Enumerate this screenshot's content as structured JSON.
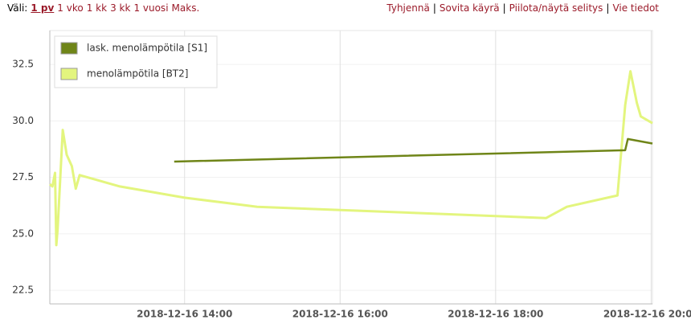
{
  "toolbar": {
    "range_label": "Väli:",
    "ranges": [
      "1 pv",
      "1 vko",
      "1 kk",
      "3 kk",
      "1 vuosi",
      "Maks."
    ],
    "actions": [
      "Tyhjennä",
      "Sovita käyrä",
      "Piilota/näytä selitys",
      "Vie tiedot"
    ],
    "separator": "|"
  },
  "chart_data": {
    "type": "line",
    "xlim": [
      "2018-12-16 12:16",
      "2018-12-16 20:01"
    ],
    "xticks": [
      "2018-12-16 14:00",
      "2018-12-16 16:00",
      "2018-12-16 18:00",
      "2018-12-16 20:00"
    ],
    "ylim": [
      21.9,
      34.0
    ],
    "yticks": [
      22.5,
      {
        "value": 25,
        "label": "25.0"
      },
      27.5,
      {
        "value": 30,
        "label": "30.0"
      },
      32.5
    ],
    "grid": true,
    "legend": "upper left",
    "series": [
      {
        "name": "lask. menolämpötila [S1]",
        "color": "#6f8518",
        "x": [
          "2018-12-16 13:52",
          "2018-12-16 19:40",
          "2018-12-16 19:42",
          "2018-12-16 20:01"
        ],
        "values": [
          28.2,
          28.7,
          29.2,
          29.0
        ]
      },
      {
        "name": "menolämpötila [BT2]",
        "color": "#e3f57e",
        "x": [
          "2018-12-16 12:16",
          "2018-12-16 12:18",
          "2018-12-16 12:20",
          "2018-12-16 12:21",
          "2018-12-16 12:22",
          "2018-12-16 12:26",
          "2018-12-16 12:29",
          "2018-12-16 12:33",
          "2018-12-16 12:36",
          "2018-12-16 12:39",
          "2018-12-16 13:10",
          "2018-12-16 14:00",
          "2018-12-16 14:56",
          "2018-12-16 18:39",
          "2018-12-16 18:55",
          "2018-12-16 19:34",
          "2018-12-16 19:40",
          "2018-12-16 19:44",
          "2018-12-16 19:49",
          "2018-12-16 19:52",
          "2018-12-16 20:01"
        ],
        "values": [
          27.2,
          27.1,
          27.7,
          24.5,
          25.2,
          29.6,
          28.5,
          28.0,
          27.0,
          27.6,
          27.1,
          26.6,
          26.2,
          25.7,
          26.2,
          26.7,
          30.7,
          32.2,
          30.8,
          30.2,
          29.9
        ]
      }
    ]
  }
}
